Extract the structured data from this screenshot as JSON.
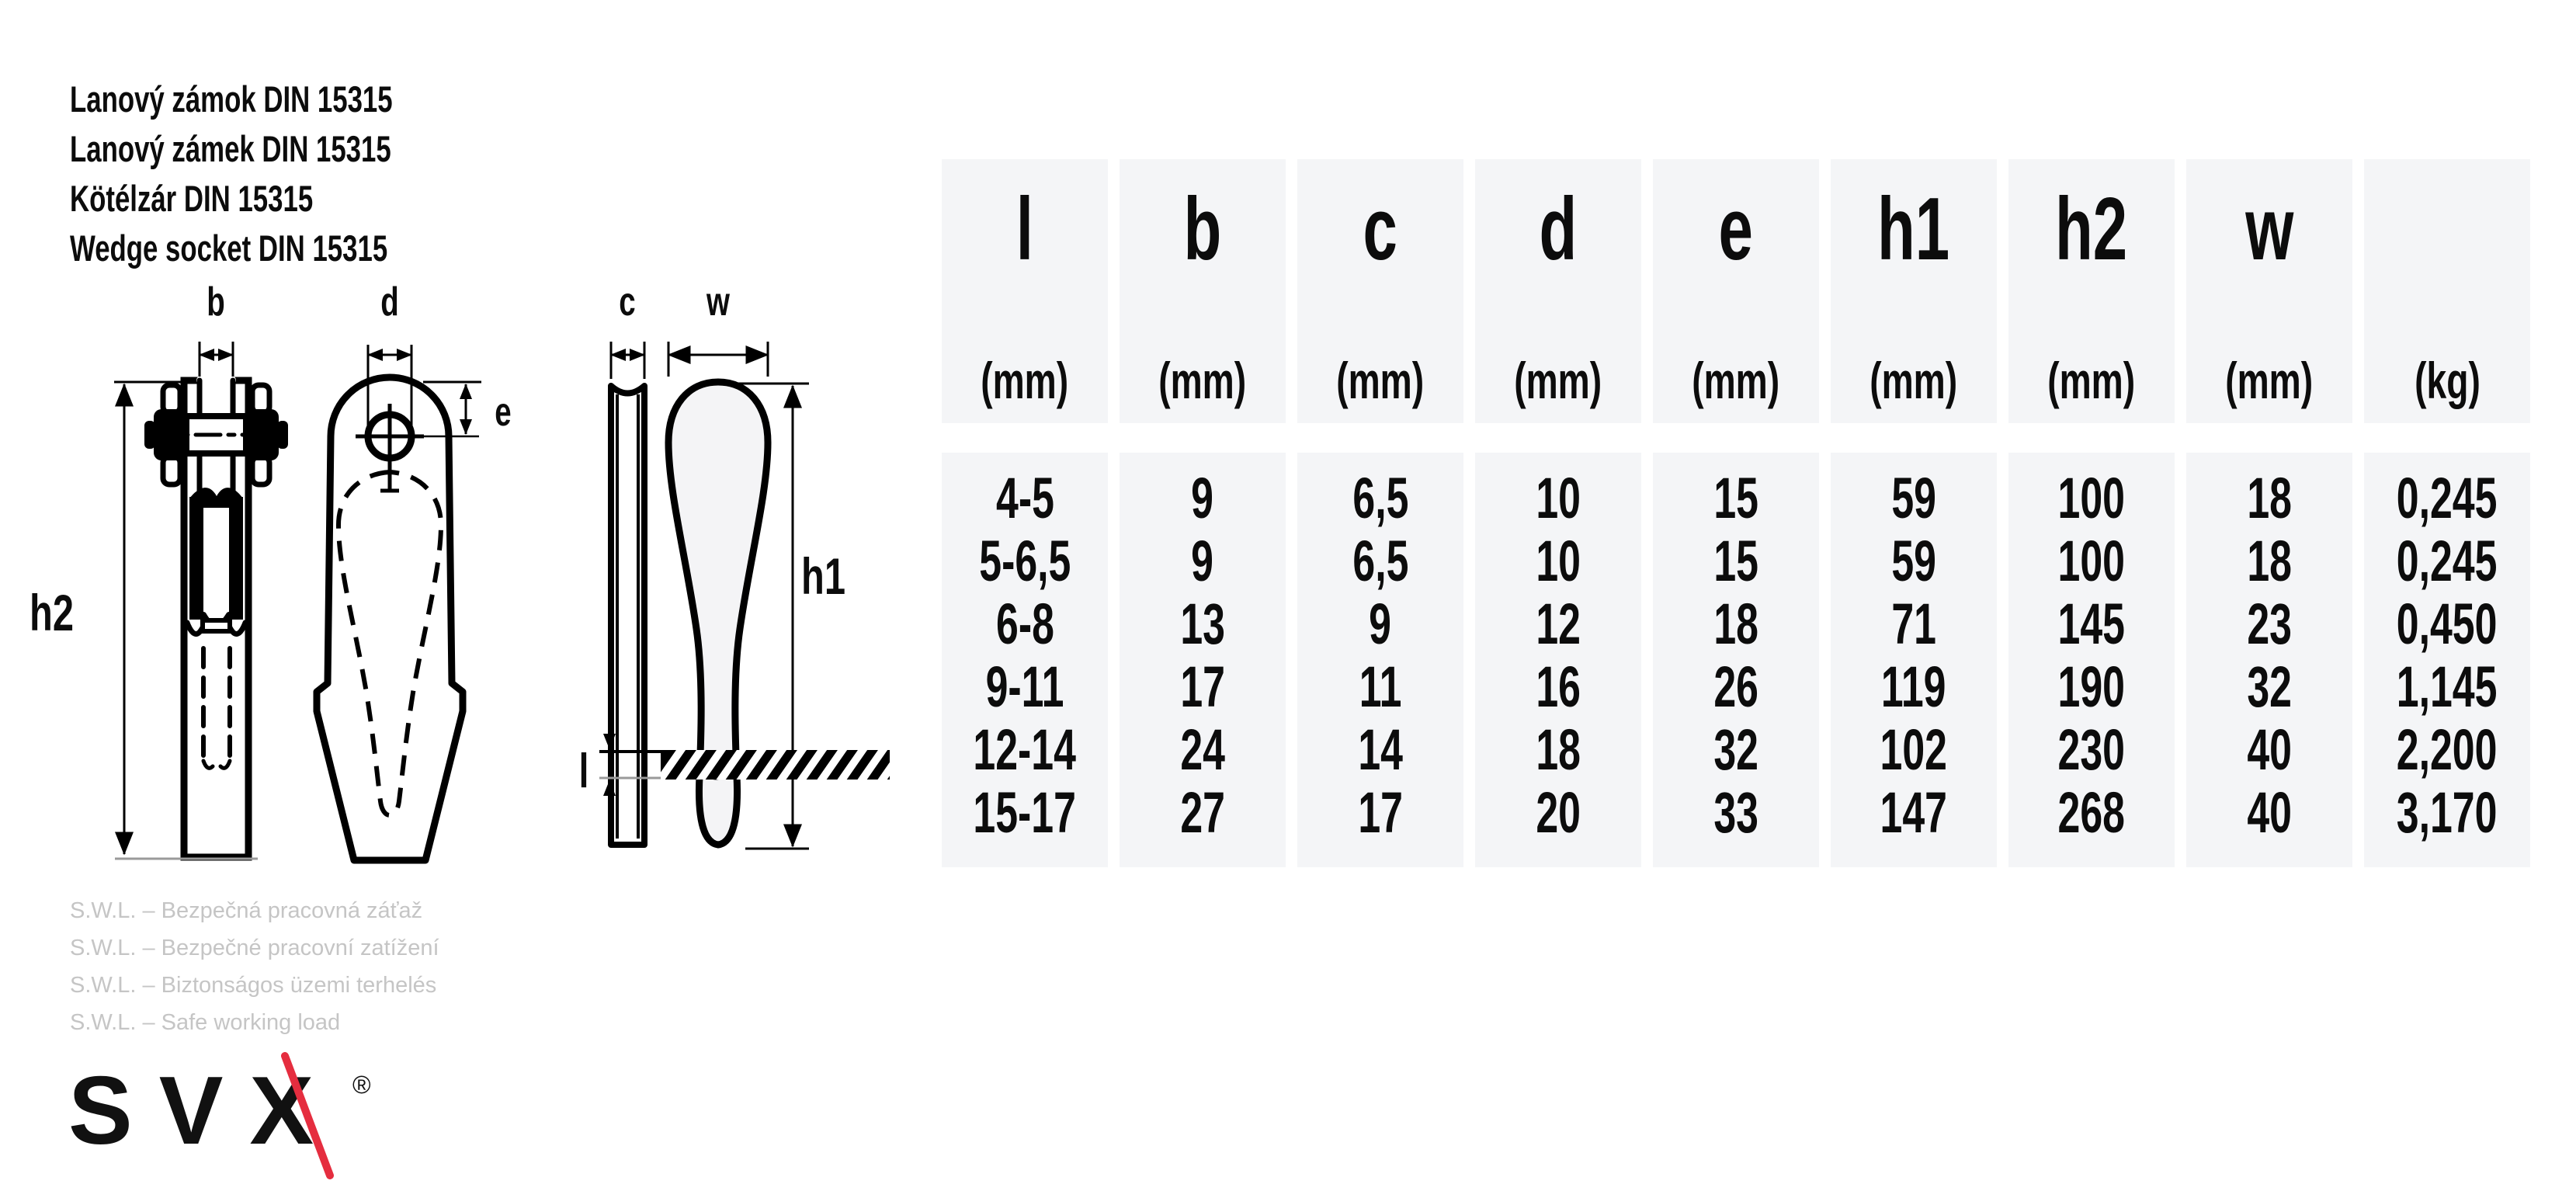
{
  "product": {
    "titles": [
      "Lanový zámok DIN 15315",
      "Lanový zámek DIN 15315",
      "Kötélzár DIN 15315",
      "Wedge socket DIN 15315"
    ]
  },
  "diagram": {
    "labels": {
      "b": "b",
      "d": "d",
      "e": "e",
      "h2": "h2",
      "c": "c",
      "w": "w",
      "h1": "h1",
      "l": "l"
    }
  },
  "table": {
    "columns": [
      {
        "name": "l",
        "unit": "(mm)"
      },
      {
        "name": "b",
        "unit": "(mm)"
      },
      {
        "name": "c",
        "unit": "(mm)"
      },
      {
        "name": "d",
        "unit": "(mm)"
      },
      {
        "name": "e",
        "unit": "(mm)"
      },
      {
        "name": "h1",
        "unit": "(mm)"
      },
      {
        "name": "h2",
        "unit": "(mm)"
      },
      {
        "name": "w",
        "unit": "(mm)"
      },
      {
        "name": "",
        "unit": "(kg)"
      }
    ],
    "rows": [
      [
        "4-5",
        "9",
        "6,5",
        "10",
        "15",
        "59",
        "100",
        "18",
        "0,245"
      ],
      [
        "5-6,5",
        "9",
        "6,5",
        "10",
        "15",
        "59",
        "100",
        "18",
        "0,245"
      ],
      [
        "6-8",
        "13",
        "9",
        "12",
        "18",
        "71",
        "145",
        "23",
        "0,450"
      ],
      [
        "9-11",
        "17",
        "11",
        "16",
        "26",
        "119",
        "190",
        "32",
        "1,145"
      ],
      [
        "12-14",
        "24",
        "14",
        "18",
        "32",
        "102",
        "230",
        "40",
        "2,200"
      ],
      [
        "15-17",
        "27",
        "17",
        "20",
        "33",
        "147",
        "268",
        "40",
        "3,170"
      ]
    ]
  },
  "footnotes": [
    "S.W.L. – Bezpečná pracovná záťaž",
    "S.W.L. – Bezpečné pracovní zatížení",
    "S.W.L. – Biztonságos üzemi terhelés",
    "S.W.L. – Safe working load"
  ],
  "logo": {
    "text": "SVX",
    "registered": "®"
  },
  "colors": {
    "ink": "#0c0c0c",
    "table_bg": "#f4f5f7",
    "muted_text": "#c5c5c5",
    "logo_red": "#e52d3f",
    "ref_line": "#9a9a9a"
  }
}
